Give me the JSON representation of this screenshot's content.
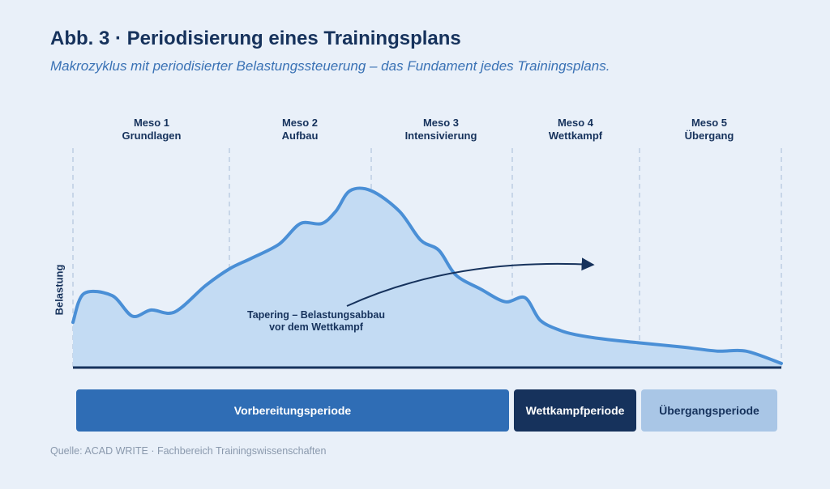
{
  "title": "Abb. 3 · Periodisierung eines Trainingsplans",
  "subtitle": "Makrozyklus mit periodisierter Belastungssteuerung – das Fundament jedes Trainingsplans.",
  "mesocycles": [
    {
      "name": "Meso 1",
      "phase": "Grundlagen"
    },
    {
      "name": "Meso 2",
      "phase": "Aufbau"
    },
    {
      "name": "Meso 3",
      "phase": "Intensivierung"
    },
    {
      "name": "Meso 4",
      "phase": "Wettkampf"
    },
    {
      "name": "Meso 5",
      "phase": "Übergang"
    }
  ],
  "y_axis_label": "Belastung",
  "annotation": {
    "line1": "Tapering – Belastungsabbau",
    "line2": "vor dem Wettkampf"
  },
  "periods": [
    {
      "label": "Vorbereitungsperiode"
    },
    {
      "label": "Wettkampfperiode"
    },
    {
      "label": "Übergangsperiode"
    }
  ],
  "source": "Quelle: ACAD WRITE · Fachbereich Trainingswissenschaften",
  "colors": {
    "curve": "#4a8fd6",
    "area": "#c3dbf3",
    "baseline": "#16325c",
    "divider": "#c8d6e8",
    "arrow": "#16325c",
    "title": "#16325c",
    "subtitle": "#3a72b5",
    "period_preparation": "#2f6db5",
    "period_competition": "#16325c",
    "period_transition": "#a9c6e6"
  },
  "chart_data": {
    "type": "area",
    "x_domain": [
      0,
      5
    ],
    "y_range": [
      0,
      100
    ],
    "segment_boundaries": [
      0,
      1,
      2,
      3,
      4,
      5
    ],
    "series": [
      {
        "x": [
          0,
          0.07,
          0.25,
          0.38,
          0.5,
          0.65,
          0.85,
          1.0,
          1.15,
          1.35,
          1.5,
          1.65,
          1.75,
          1.85,
          2.0,
          2.2,
          2.35,
          2.48,
          2.6,
          2.78,
          2.95,
          3.1,
          3.22,
          3.38,
          3.5,
          3.7,
          4.0,
          4.3,
          4.55,
          4.75,
          5.0
        ],
        "y": [
          22,
          36,
          35,
          25,
          28,
          27,
          40,
          48,
          53,
          60,
          70,
          70,
          76,
          86,
          86,
          76,
          62,
          57,
          45,
          38,
          32,
          34,
          23,
          18,
          16,
          14,
          12,
          10,
          8,
          8,
          2
        ]
      }
    ]
  }
}
